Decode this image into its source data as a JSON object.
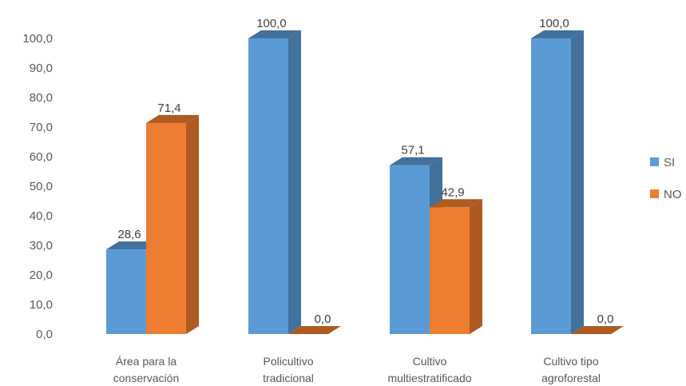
{
  "chart_data": {
    "type": "bar",
    "categories": [
      [
        "Área para la",
        "conservación"
      ],
      [
        "Policultivo",
        "tradicional"
      ],
      [
        "Cultivo",
        "multiestratificado"
      ],
      [
        "Cultivo tipo",
        "agroforestal"
      ]
    ],
    "series": [
      {
        "name": "SI",
        "values": [
          28.6,
          100.0,
          57.1,
          100.0
        ],
        "labels": [
          "28,6",
          "100,0",
          "57,1",
          "100,0"
        ],
        "color": "#5B9BD5",
        "side_color": "#41719C"
      },
      {
        "name": "NO",
        "values": [
          71.4,
          0.0,
          42.9,
          0.0
        ],
        "labels": [
          "71,4",
          "0,0",
          "42,9",
          "0,0"
        ],
        "color": "#ED7D31",
        "side_color": "#AE5A21"
      }
    ],
    "y_ticks": [
      "0,0",
      "10,0",
      "20,0",
      "30,0",
      "40,0",
      "50,0",
      "60,0",
      "70,0",
      "80,0",
      "90,0",
      "100,0"
    ],
    "ylim": [
      0,
      100
    ],
    "grid": false,
    "legend_position": "right",
    "title": "",
    "xlabel": "",
    "ylabel": ""
  }
}
